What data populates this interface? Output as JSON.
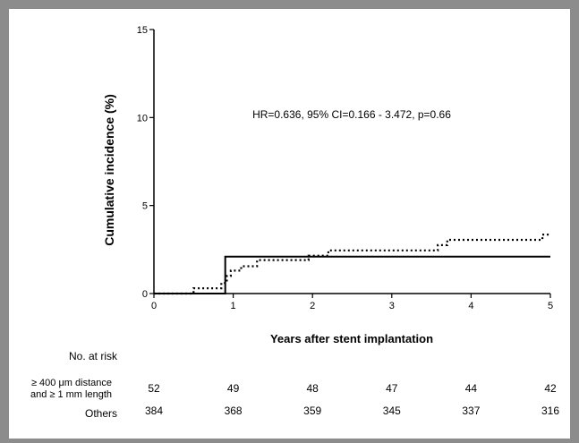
{
  "chart_data": {
    "type": "line",
    "ylabel": "Cumulative incidence (%)",
    "xlabel": "Years after stent implantation",
    "annotation": "HR=0.636, 95% CI=0.166 - 3.472, p=0.66",
    "xlim": [
      0,
      5
    ],
    "ylim": [
      0,
      15
    ],
    "x_ticks": [
      "0",
      "1",
      "2",
      "3",
      "4",
      "5"
    ],
    "y_ticks": [
      "0",
      "5",
      "10",
      "15"
    ],
    "grid": false,
    "series": [
      {
        "style": "solid",
        "points": [
          [
            0,
            0
          ],
          [
            0.9,
            0
          ],
          [
            0.9,
            2.1
          ],
          [
            5,
            2.1
          ]
        ]
      },
      {
        "style": "dotted",
        "points": [
          [
            0,
            0
          ],
          [
            0.5,
            0
          ],
          [
            0.5,
            0.3
          ],
          [
            0.85,
            0.3
          ],
          [
            0.85,
            0.6
          ],
          [
            0.92,
            0.6
          ],
          [
            0.92,
            1.0
          ],
          [
            0.97,
            1.0
          ],
          [
            0.97,
            1.3
          ],
          [
            1.1,
            1.3
          ],
          [
            1.1,
            1.55
          ],
          [
            1.3,
            1.55
          ],
          [
            1.3,
            1.9
          ],
          [
            1.95,
            1.9
          ],
          [
            1.95,
            2.15
          ],
          [
            2.2,
            2.15
          ],
          [
            2.2,
            2.45
          ],
          [
            3.58,
            2.45
          ],
          [
            3.58,
            2.75
          ],
          [
            3.7,
            2.75
          ],
          [
            3.7,
            3.05
          ],
          [
            4.9,
            3.05
          ],
          [
            4.9,
            3.35
          ],
          [
            5,
            3.35
          ]
        ]
      }
    ]
  },
  "risk_table": {
    "title": "No. at risk",
    "rows": [
      {
        "label_line1": "≥ 400 μm distance",
        "label_line2": "and ≥ 1 mm length",
        "values": [
          "52",
          "49",
          "48",
          "47",
          "44",
          "42"
        ]
      },
      {
        "label_line1": "Others",
        "label_line2": "",
        "values": [
          "384",
          "368",
          "359",
          "345",
          "337",
          "316"
        ]
      }
    ]
  }
}
